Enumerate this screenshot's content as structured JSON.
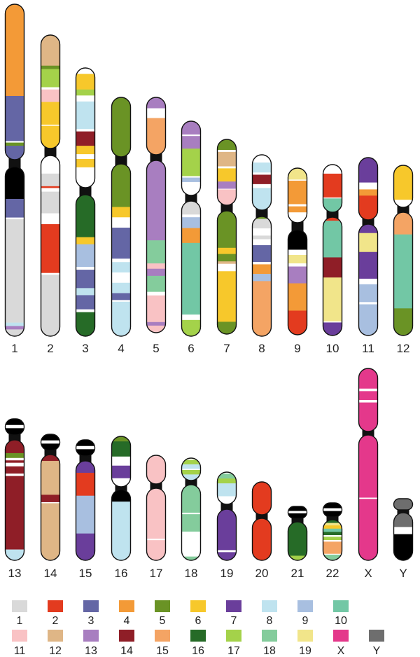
{
  "colors": {
    "1": "#d9d9d9",
    "2": "#e33b1f",
    "3": "#6466a5",
    "4": "#f39a37",
    "5": "#6a9325",
    "6": "#f7c82b",
    "7": "#6a3e9b",
    "8": "#bfe3ef",
    "9": "#a8bfe0",
    "10": "#72c7a5",
    "11": "#f9c2c4",
    "12": "#dfb686",
    "13": "#a87ec0",
    "14": "#8f1e27",
    "15": "#f4a464",
    "16": "#266b27",
    "17": "#a4d24a",
    "18": "#84cc9c",
    "19": "#f1e58a",
    "X": "#e4388b",
    "Y": "#6e6e6e",
    "het": "#000000",
    "blank": "#ffffff"
  },
  "legend": {
    "row1": [
      "1",
      "2",
      "3",
      "4",
      "5",
      "6",
      "7",
      "8",
      "9",
      "10"
    ],
    "row2": [
      "11",
      "12",
      "13",
      "14",
      "15",
      "16",
      "17",
      "18",
      "19",
      "X",
      "Y"
    ]
  },
  "chromosomes": [
    {
      "label": "1",
      "p": [
        [
          "4",
          0.59
        ],
        [
          "3",
          0.29
        ],
        [
          "blank",
          0.01
        ],
        [
          "5",
          0.02
        ],
        [
          "3",
          0.09
        ]
      ],
      "q": [
        [
          "het",
          0.19
        ],
        [
          "3",
          0.11
        ],
        [
          "blank",
          0.01
        ],
        [
          "1",
          0.61
        ],
        [
          "8",
          0.02
        ],
        [
          "13",
          0.02
        ],
        [
          "1",
          0.04
        ]
      ]
    },
    {
      "label": "2",
      "p": [
        [
          "12",
          0.27
        ],
        [
          "5",
          0.03
        ],
        [
          "17",
          0.16
        ],
        [
          "blank",
          0.02
        ],
        [
          "11",
          0.11
        ],
        [
          "6",
          0.2
        ],
        [
          "blank",
          0.01
        ],
        [
          "6",
          0.2
        ]
      ],
      "q": [
        [
          "blank",
          0.1
        ],
        [
          "1",
          0.07
        ],
        [
          "2",
          0.01
        ],
        [
          "blank",
          0.02
        ],
        [
          "1",
          0.12
        ],
        [
          "blank",
          0.06
        ],
        [
          "2",
          0.27
        ],
        [
          "blank",
          0.01
        ],
        [
          "1",
          0.34
        ]
      ]
    },
    {
      "label": "3",
      "p": [
        [
          "blank",
          0.05
        ],
        [
          "6",
          0.13
        ],
        [
          "17",
          0.05
        ],
        [
          "blank",
          0.05
        ],
        [
          "8",
          0.23
        ],
        [
          "blank",
          0.02
        ],
        [
          "14",
          0.12
        ],
        [
          "6",
          0.07
        ],
        [
          "blank",
          0.04
        ],
        [
          "6",
          0.07
        ],
        [
          "blank",
          0.17
        ]
      ],
      "q": [
        [
          "16",
          0.3
        ],
        [
          "6",
          0.05
        ],
        [
          "9",
          0.16
        ],
        [
          "blank",
          0.02
        ],
        [
          "3",
          0.13
        ],
        [
          "8",
          0.05
        ],
        [
          "3",
          0.1
        ],
        [
          "blank",
          0.02
        ],
        [
          "16",
          0.17
        ]
      ]
    },
    {
      "label": "4",
      "p": [
        [
          "5",
          1.0
        ]
      ],
      "q": [
        [
          "5",
          0.25
        ],
        [
          "6",
          0.06
        ],
        [
          "blank",
          0.06
        ],
        [
          "3",
          0.18
        ],
        [
          "blank",
          0.02
        ],
        [
          "8",
          0.06
        ],
        [
          "blank",
          0.06
        ],
        [
          "8",
          0.06
        ],
        [
          "3",
          0.04
        ],
        [
          "blank",
          0.01
        ],
        [
          "8",
          0.2
        ]
      ]
    },
    {
      "label": "5",
      "p": [
        [
          "13",
          0.19
        ],
        [
          "blank",
          0.17
        ],
        [
          "15",
          0.64
        ]
      ],
      "q": [
        [
          "13",
          0.45
        ],
        [
          "18",
          0.13
        ],
        [
          "11",
          0.03
        ],
        [
          "13",
          0.04
        ],
        [
          "18",
          0.09
        ],
        [
          "blank",
          0.02
        ],
        [
          "11",
          0.15
        ],
        [
          "13",
          0.02
        ],
        [
          "11",
          0.04
        ]
      ]
    },
    {
      "label": "6",
      "p": [
        [
          "13",
          0.18
        ],
        [
          "blank",
          0.02
        ],
        [
          "13",
          0.17
        ],
        [
          "17",
          0.37
        ],
        [
          "blank",
          0.02
        ],
        [
          "9",
          0.06
        ],
        [
          "blank",
          0.18
        ]
      ],
      "q": [
        [
          "1",
          0.1
        ],
        [
          "blank",
          0.02
        ],
        [
          "9",
          0.08
        ],
        [
          "4",
          0.11
        ],
        [
          "10",
          0.53
        ],
        [
          "blank",
          0.04
        ],
        [
          "17",
          0.12
        ]
      ]
    },
    {
      "label": "7",
      "p": [
        [
          "5",
          0.16
        ],
        [
          "blank",
          0.03
        ],
        [
          "12",
          0.22
        ],
        [
          "blank",
          0.03
        ],
        [
          "6",
          0.2
        ],
        [
          "13",
          0.11
        ],
        [
          "blank",
          0.01
        ],
        [
          "11",
          0.24
        ]
      ],
      "q": [
        [
          "5",
          0.3
        ],
        [
          "6",
          0.05
        ],
        [
          "5",
          0.06
        ],
        [
          "12",
          0.02
        ],
        [
          "blank",
          0.06
        ],
        [
          "6",
          0.41
        ],
        [
          "5",
          0.1
        ]
      ]
    },
    {
      "label": "8",
      "p": [
        [
          "blank",
          0.14
        ],
        [
          "8",
          0.18
        ],
        [
          "blank",
          0.04
        ],
        [
          "14",
          0.17
        ],
        [
          "blank",
          0.07
        ],
        [
          "8",
          0.4
        ]
      ],
      "q": [
        [
          "5",
          0.02
        ],
        [
          "1",
          0.08
        ],
        [
          "blank",
          0.06
        ],
        [
          "1",
          0.03
        ],
        [
          "blank",
          0.05
        ],
        [
          "3",
          0.14
        ],
        [
          "blank",
          0.02
        ],
        [
          "4",
          0.08
        ],
        [
          "9",
          0.06
        ],
        [
          "15",
          0.46
        ]
      ]
    },
    {
      "label": "9",
      "p": [
        [
          "19",
          0.21
        ],
        [
          "blank",
          0.02
        ],
        [
          "4",
          0.43
        ],
        [
          "blank",
          0.04
        ],
        [
          "4",
          0.11
        ],
        [
          "blank",
          0.19
        ]
      ],
      "q": [
        [
          "het",
          0.19
        ],
        [
          "blank",
          0.05
        ],
        [
          "19",
          0.08
        ],
        [
          "blank",
          0.03
        ],
        [
          "13",
          0.16
        ],
        [
          "4",
          0.26
        ],
        [
          "2",
          0.23
        ]
      ]
    },
    {
      "label": "10",
      "p": [
        [
          "blank",
          0.19
        ],
        [
          "2",
          0.5
        ],
        [
          "blank",
          0.02
        ],
        [
          "10",
          0.29
        ]
      ],
      "q": [
        [
          "2",
          0.03
        ],
        [
          "10",
          0.31
        ],
        [
          "14",
          0.17
        ],
        [
          "19",
          0.37
        ],
        [
          "blank",
          0.01
        ],
        [
          "7",
          0.11
        ]
      ]
    },
    {
      "label": "11",
      "p": [
        [
          "7",
          0.4
        ],
        [
          "blank",
          0.11
        ],
        [
          "4",
          0.1
        ],
        [
          "2",
          0.39
        ]
      ],
      "q": [
        [
          "7",
          0.08
        ],
        [
          "19",
          0.17
        ],
        [
          "7",
          0.24
        ],
        [
          "blank",
          0.05
        ],
        [
          "9",
          0.16
        ],
        [
          "blank",
          0.02
        ],
        [
          "9",
          0.28
        ]
      ]
    },
    {
      "label": "12",
      "p": [
        [
          "6",
          0.82
        ],
        [
          "blank",
          0.18
        ]
      ],
      "q": [
        [
          "15",
          0.18
        ],
        [
          "10",
          0.6
        ],
        [
          "5",
          0.22
        ]
      ]
    },
    {
      "label": "13",
      "p": [
        [
          "het",
          0.38
        ],
        [
          "blank",
          0.2
        ],
        [
          "het",
          0.42
        ]
      ],
      "q": [
        [
          "14",
          0.11
        ],
        [
          "5",
          0.04
        ],
        [
          "blank",
          0.02
        ],
        [
          "14",
          0.02
        ],
        [
          "blank",
          0.03
        ],
        [
          "14",
          0.06
        ],
        [
          "blank",
          0.02
        ],
        [
          "14",
          0.61
        ],
        [
          "8",
          0.09
        ]
      ]
    },
    {
      "label": "14",
      "p": [
        [
          "het",
          0.38
        ],
        [
          "blank",
          0.2
        ],
        [
          "het",
          0.42
        ]
      ],
      "q": [
        [
          "14",
          0.06
        ],
        [
          "12",
          0.32
        ],
        [
          "14",
          0.07
        ],
        [
          "blank",
          0.01
        ],
        [
          "12",
          0.54
        ]
      ]
    },
    {
      "label": "15",
      "p": [
        [
          "het",
          0.38
        ],
        [
          "blank",
          0.2
        ],
        [
          "het",
          0.42
        ]
      ],
      "q": [
        [
          "7",
          0.12
        ],
        [
          "2",
          0.23
        ],
        [
          "9",
          0.38
        ],
        [
          "7",
          0.27
        ]
      ]
    },
    {
      "label": "16",
      "p": [
        [
          "5",
          0.1
        ],
        [
          "16",
          0.3
        ],
        [
          "blank",
          0.18
        ],
        [
          "7",
          0.25
        ],
        [
          "blank",
          0.17
        ]
      ],
      "q": [
        [
          "het",
          0.17
        ],
        [
          "8",
          0.83
        ]
      ]
    },
    {
      "label": "17",
      "p": [
        [
          "11",
          1.0
        ]
      ],
      "q": [
        [
          "11",
          0.7
        ],
        [
          "blank",
          0.02
        ],
        [
          "11",
          0.28
        ]
      ]
    },
    {
      "label": "18",
      "p": [
        [
          "blank",
          0.08
        ],
        [
          "17",
          0.2
        ],
        [
          "8",
          0.2
        ],
        [
          "blank",
          0.05
        ],
        [
          "17",
          0.2
        ],
        [
          "8",
          0.27
        ]
      ],
      "q": [
        [
          "18",
          0.37
        ],
        [
          "blank",
          0.02
        ],
        [
          "18",
          0.23
        ],
        [
          "blank",
          0.33
        ],
        [
          "18",
          0.05
        ]
      ]
    },
    {
      "label": "19",
      "p": [
        [
          "blank",
          0.05
        ],
        [
          "18",
          0.15
        ],
        [
          "17",
          0.15
        ],
        [
          "8",
          0.4
        ],
        [
          "blank",
          0.25
        ]
      ],
      "q": [
        [
          "7",
          0.8
        ],
        [
          "blank",
          0.04
        ],
        [
          "7",
          0.16
        ]
      ]
    },
    {
      "label": "20",
      "p": [
        [
          "2",
          1.0
        ]
      ],
      "q": [
        [
          "2",
          1.0
        ]
      ]
    },
    {
      "label": "21",
      "p": [
        [
          "het",
          0.38
        ],
        [
          "blank",
          0.2
        ],
        [
          "het",
          0.42
        ]
      ],
      "q": [
        [
          "16",
          0.88
        ],
        [
          "17",
          0.12
        ]
      ]
    },
    {
      "label": "22",
      "p": [
        [
          "het",
          0.38
        ],
        [
          "blank",
          0.2
        ],
        [
          "het",
          0.42
        ]
      ],
      "q": [
        [
          "16",
          0.08
        ],
        [
          "19",
          0.06
        ],
        [
          "6",
          0.08
        ],
        [
          "10",
          0.08
        ],
        [
          "16",
          0.08
        ],
        [
          "blank",
          0.04
        ],
        [
          "17",
          0.08
        ],
        [
          "blank",
          0.04
        ],
        [
          "15",
          0.3
        ],
        [
          "blank",
          0.02
        ],
        [
          "18",
          0.14
        ]
      ]
    },
    {
      "label": "X",
      "p": [
        [
          "X",
          0.32
        ],
        [
          "blank",
          0.04
        ],
        [
          "X",
          0.14
        ],
        [
          "blank",
          0.04
        ],
        [
          "X",
          0.46
        ]
      ],
      "q": [
        [
          "X",
          0.5
        ],
        [
          "blank",
          0.01
        ],
        [
          "X",
          0.49
        ]
      ]
    },
    {
      "label": "Y",
      "p": [
        [
          "Y",
          1.0
        ]
      ],
      "q": [
        [
          "Y",
          0.3
        ],
        [
          "blank",
          0.15
        ],
        [
          "het",
          0.55
        ]
      ]
    }
  ]
}
